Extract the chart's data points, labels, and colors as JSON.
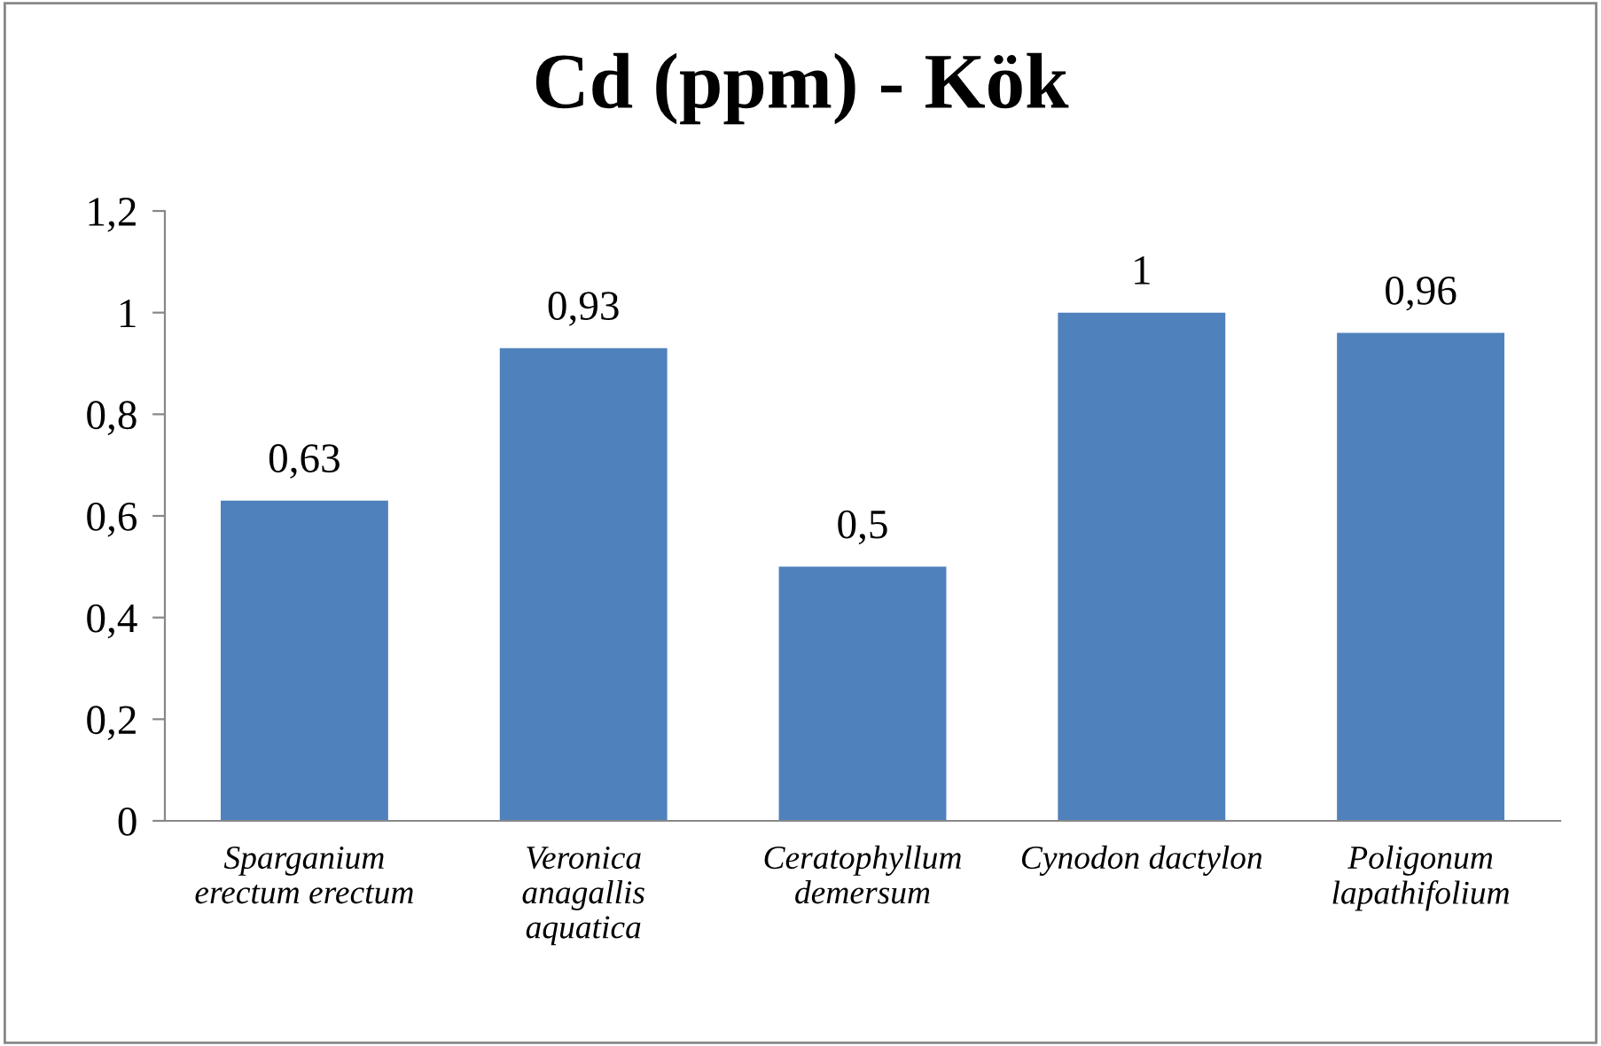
{
  "chart_data": {
    "type": "bar",
    "title": "Cd (ppm) - Kök",
    "categories": [
      "Sparganium erectum erectum",
      "Veronica anagallis aquatica",
      "Ceratophyllum demersum",
      "Cynodon dactylon",
      "Poligonum lapathifolium"
    ],
    "values": [
      0.63,
      0.93,
      0.5,
      1,
      0.96
    ],
    "value_labels": [
      "0,63",
      "0,93",
      "0,5",
      "1",
      "0,96"
    ],
    "color": "#4f81bd",
    "ylim": [
      0,
      1.2
    ],
    "yticks": [
      0,
      {
        "value": 0.2,
        "label": "0,2"
      },
      {
        "value": 0.4,
        "label": "0,4"
      },
      {
        "value": 0.6,
        "label": "0,6"
      },
      {
        "value": 0.8,
        "label": "0,8"
      },
      1,
      {
        "value": 1.2,
        "label": "1,2"
      }
    ],
    "grid": false,
    "legend": false
  }
}
